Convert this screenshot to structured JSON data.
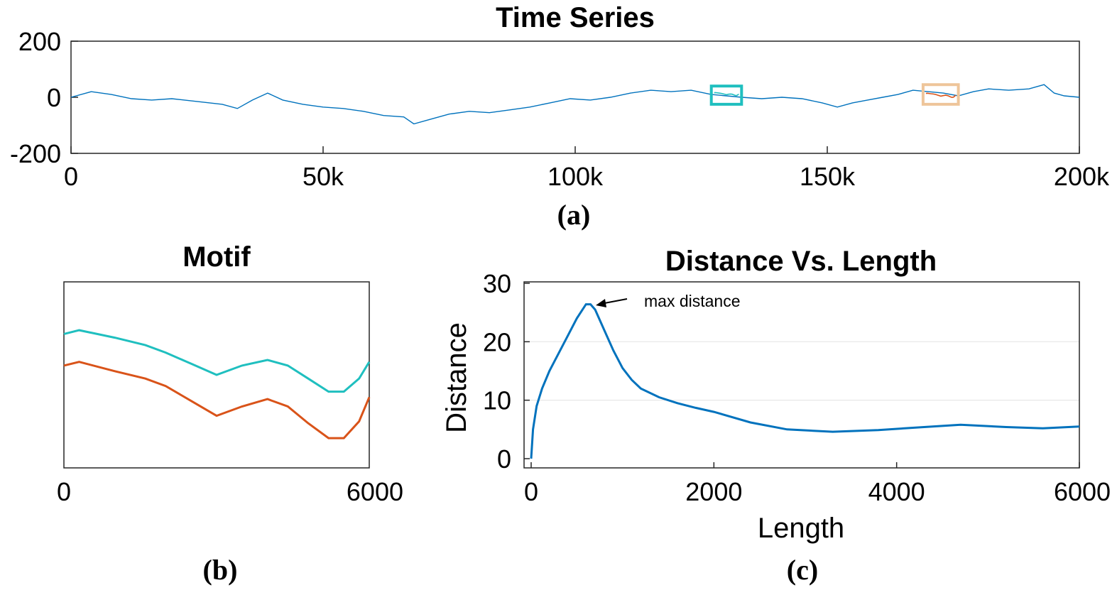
{
  "colors": {
    "series": "#0072bd",
    "cyan": "#1fbfbf",
    "orange": "#d95319",
    "orange_box": "#eec59a",
    "grid": "#e6e6e6"
  },
  "captions": {
    "a": "(a)",
    "b": "(b)",
    "c": "(c)"
  },
  "annotation": {
    "text": "max distance"
  },
  "chart_data": [
    {
      "type": "line",
      "title": "Time Series",
      "xlabel": "",
      "ylabel": "",
      "xlim": [
        0,
        200000
      ],
      "ylim": [
        -200,
        200
      ],
      "x_ticks": [
        "0",
        "50k",
        "100k",
        "150k",
        "200k"
      ],
      "y_ticks": [
        "200",
        "0",
        "-200"
      ],
      "series": [
        {
          "x": [
            0,
            4000,
            8000,
            12000,
            16000,
            20000,
            25000,
            30000,
            33000,
            36000,
            39000,
            42000,
            46000,
            50000,
            54000,
            58000,
            62000,
            66000,
            68000,
            71000,
            75000,
            79000,
            83000,
            87000,
            91000,
            95000,
            99000,
            103000,
            107000,
            111000,
            115000,
            119000,
            123000,
            127000,
            130000,
            133000,
            137000,
            141000,
            145000,
            149000,
            152000,
            155000,
            158000,
            161000,
            164000,
            167000,
            170000,
            173000,
            176000,
            179000,
            182000,
            186000,
            190000,
            193000,
            195000,
            197000,
            200000
          ],
          "values": [
            0,
            20,
            10,
            -5,
            -10,
            -5,
            -15,
            -25,
            -40,
            -10,
            15,
            -10,
            -25,
            -35,
            -40,
            -50,
            -65,
            -70,
            -95,
            -80,
            -60,
            -50,
            -55,
            -45,
            -35,
            -20,
            -5,
            -10,
            0,
            15,
            25,
            20,
            25,
            10,
            5,
            0,
            -5,
            0,
            -5,
            -20,
            -35,
            -20,
            -10,
            0,
            10,
            25,
            20,
            15,
            5,
            20,
            30,
            25,
            30,
            45,
            15,
            5,
            0
          ]
        }
      ],
      "highlights": [
        {
          "x_range": [
            127000,
            133000
          ],
          "y_range": [
            -25,
            40
          ],
          "color": "cyan"
        },
        {
          "x_range": [
            169000,
            176000
          ],
          "y_range": [
            -25,
            45
          ],
          "color": "orange"
        }
      ]
    },
    {
      "type": "line",
      "title": "Motif",
      "xlabel": "",
      "ylabel": "",
      "xlim": [
        0,
        6000
      ],
      "x_ticks": [
        "0",
        "6000"
      ],
      "series": [
        {
          "color": "cyan",
          "x": [
            0,
            300,
            1000,
            1600,
            2000,
            2500,
            3000,
            3500,
            4000,
            4400,
            4800,
            5200,
            5500,
            5800,
            6000
          ],
          "values": [
            0.72,
            0.74,
            0.7,
            0.66,
            0.62,
            0.56,
            0.5,
            0.55,
            0.58,
            0.55,
            0.48,
            0.41,
            0.41,
            0.48,
            0.57
          ]
        },
        {
          "color": "orange",
          "x": [
            0,
            300,
            1000,
            1600,
            2000,
            2500,
            3000,
            3500,
            4000,
            4400,
            4800,
            5200,
            5500,
            5800,
            6000
          ],
          "values": [
            0.55,
            0.57,
            0.52,
            0.48,
            0.44,
            0.36,
            0.28,
            0.33,
            0.37,
            0.33,
            0.24,
            0.16,
            0.16,
            0.25,
            0.38
          ]
        }
      ]
    },
    {
      "type": "line",
      "title": "Distance Vs. Length",
      "xlabel": "Length",
      "ylabel": "Distance",
      "xlim": [
        0,
        6000
      ],
      "ylim": [
        0,
        30
      ],
      "grid": true,
      "x_ticks": [
        "0",
        "2000",
        "4000",
        "6000"
      ],
      "y_ticks": [
        "30",
        "20",
        "10",
        "0"
      ],
      "series": [
        {
          "x": [
            0,
            20,
            60,
            120,
            200,
            300,
            400,
            500,
            600,
            650,
            700,
            800,
            900,
            1000,
            1100,
            1200,
            1400,
            1600,
            1800,
            2000,
            2400,
            2800,
            3300,
            3800,
            4300,
            4700,
            5200,
            5600,
            6000
          ],
          "values": [
            0,
            5,
            9,
            12,
            15,
            18,
            21,
            24,
            26.4,
            26.4,
            25.5,
            22,
            18.5,
            15.5,
            13.5,
            12,
            10.5,
            9.5,
            8.7,
            8,
            6.2,
            5,
            4.6,
            4.9,
            5.4,
            5.8,
            5.4,
            5.2,
            5.5
          ]
        }
      ],
      "annotations": [
        {
          "text": "max distance",
          "x": 650,
          "y": 26.4
        }
      ]
    }
  ]
}
